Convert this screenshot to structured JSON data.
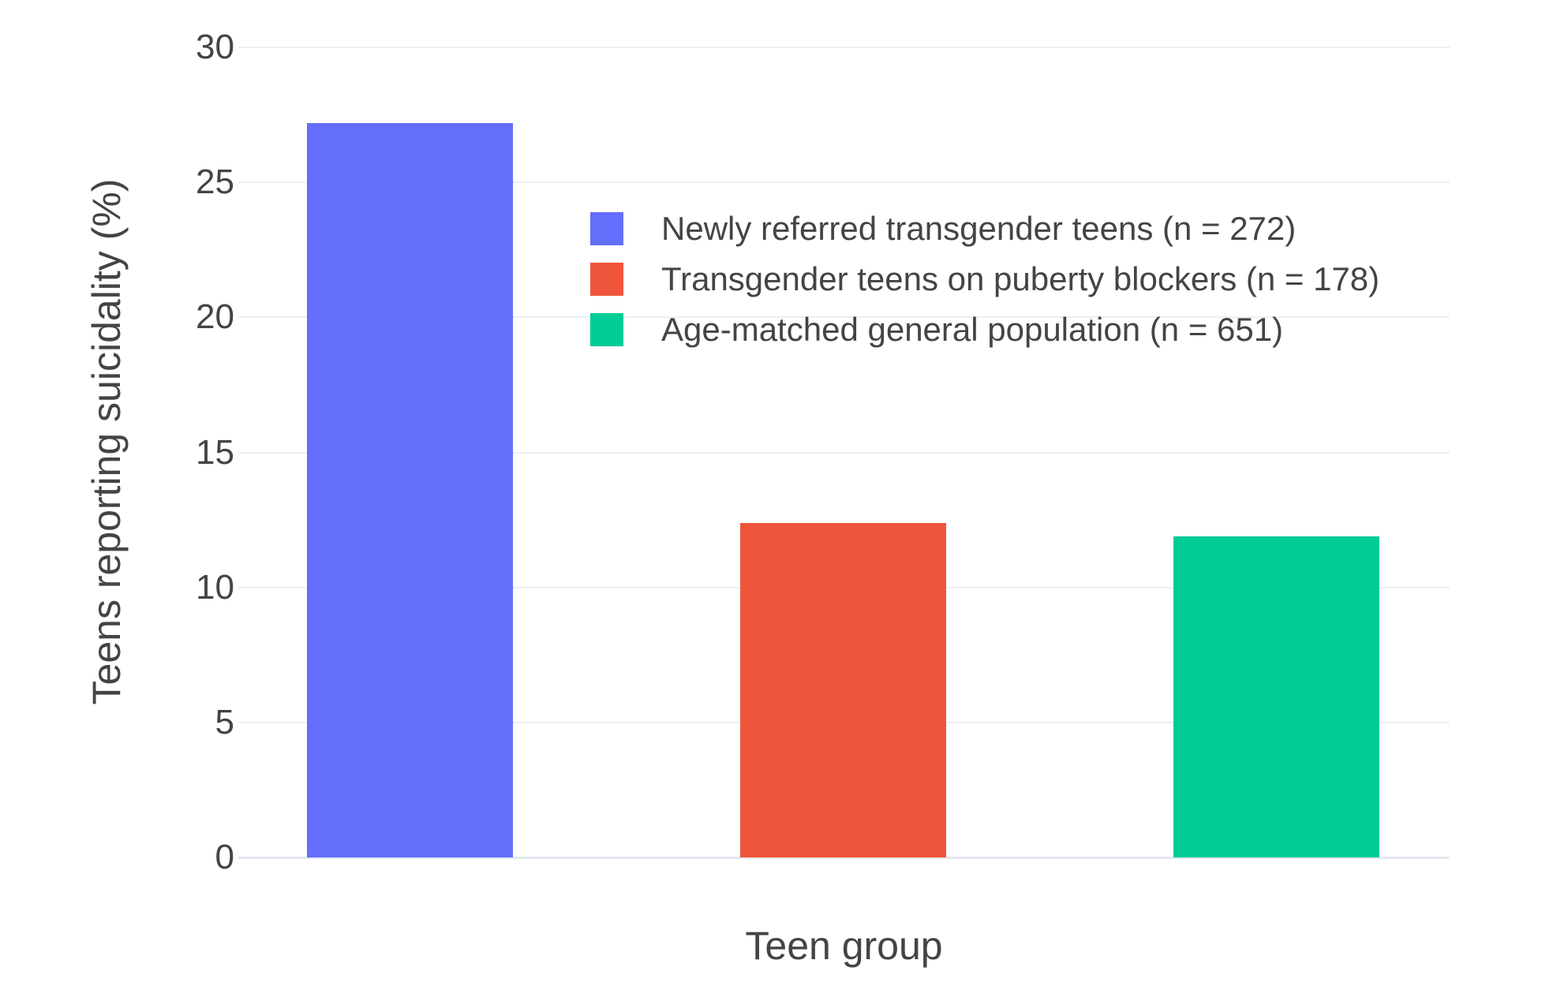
{
  "chart_data": {
    "type": "bar",
    "title": "",
    "xlabel": "Teen group",
    "ylabel": "Teens reporting suicidality (%)",
    "categories": [
      "Newly referred transgender teens (n = 272)",
      "Transgender teens on puberty blockers (n = 178)",
      "Age-matched general population (n = 651)"
    ],
    "values": [
      27.2,
      12.4,
      11.9
    ],
    "bar_colors": [
      "#636efa",
      "#ef553b",
      "#00cc96"
    ],
    "ylim": [
      0,
      30
    ],
    "yticks": [
      0,
      5,
      10,
      15,
      20,
      25,
      30
    ],
    "grid": true,
    "legend": {
      "position": "inside-top-center-right",
      "entries": [
        {
          "label": "Newly referred transgender teens (n = 272)",
          "color": "#636efa"
        },
        {
          "label": "Transgender teens on puberty blockers (n = 178)",
          "color": "#ef553b"
        },
        {
          "label": "Age-matched general population (n = 651)",
          "color": "#00cc96"
        }
      ]
    }
  },
  "colors": {
    "background": "#ffffff",
    "gridline": "#ebeff6",
    "zeroline": "#e2e7f0",
    "axis_text": "#444444"
  }
}
